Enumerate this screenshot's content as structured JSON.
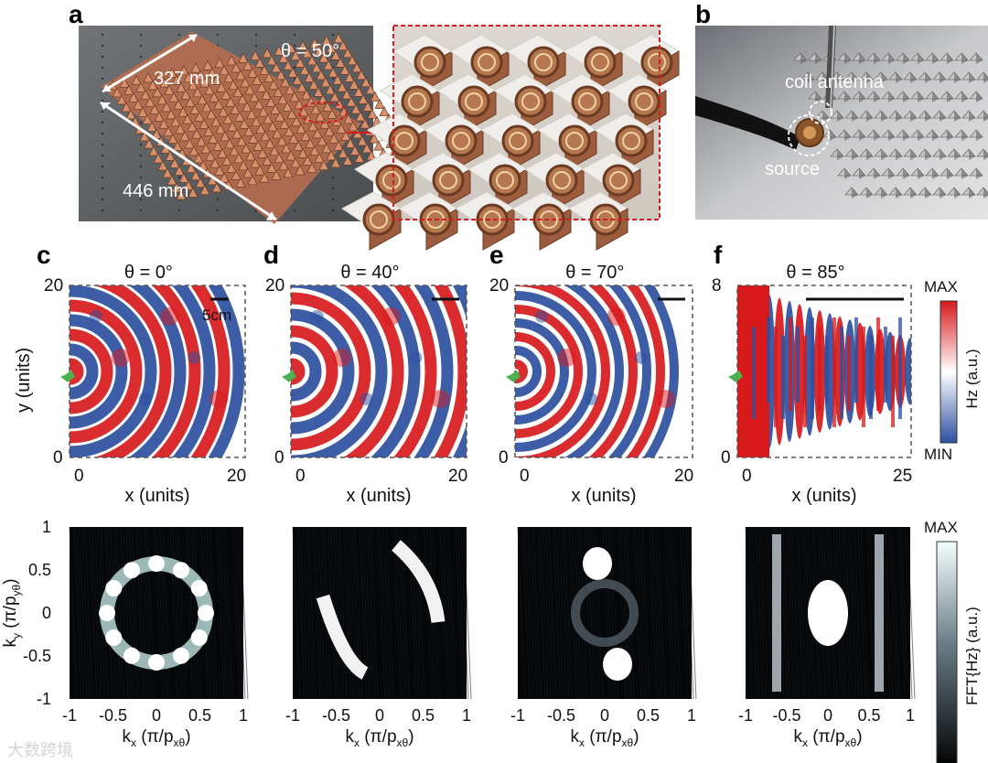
{
  "panels": {
    "a": {
      "letter": "a",
      "theta_label": "θ = 50°",
      "dim_327": "327 mm",
      "dim_446": "446 mm"
    },
    "b": {
      "letter": "b",
      "coil_label": "coil antenna",
      "source_label": "source"
    },
    "c": {
      "letter": "c",
      "theta_label": "θ = 0°",
      "scale_label": "5cm",
      "x_label": "x (units)",
      "y_label": "y (units)",
      "x_ticks": [
        "0",
        "20"
      ],
      "y_ticks": [
        "20",
        "0"
      ]
    },
    "d": {
      "letter": "d",
      "theta_label": "θ = 40°",
      "x_label": "x (units)",
      "x_ticks": [
        "0",
        "20"
      ],
      "y_ticks": [
        "20",
        "0"
      ]
    },
    "e": {
      "letter": "e",
      "theta_label": "θ = 70°",
      "x_label": "x (units)",
      "x_ticks": [
        "0",
        "20"
      ],
      "y_ticks": [
        "20",
        "0"
      ]
    },
    "f": {
      "letter": "f",
      "theta_label": "θ = 85°",
      "x_label": "x (units)",
      "x_ticks": [
        "0",
        "25"
      ],
      "y_ticks": [
        "8",
        "0"
      ]
    },
    "fft": {
      "y_label_main": "k",
      "y_label_sub": "y",
      "y_label_unit": " (π/p",
      "y_label_unit_sub": "yθ",
      "y_label_close": ")",
      "x_label_main": "k",
      "x_label_sub": "x",
      "x_label_unit": " (π/p",
      "x_label_unit_sub": "xθ",
      "x_label_close": ")",
      "y_ticks": [
        "1",
        "0.5",
        "0",
        "-0.5",
        "-1"
      ],
      "x_ticks": [
        "-1",
        "-0.5",
        "0",
        "0.5",
        "1"
      ]
    },
    "colorbar_hz": {
      "max_label": "MAX",
      "min_label": "MIN",
      "title": "Hz (a.u.)"
    },
    "colorbar_fft": {
      "max_label": "MAX",
      "zero_label": "0",
      "title": "FFT{Hz} (a.u.)"
    },
    "watermark": "大数跨境"
  },
  "colors": {
    "red": "#d7191c",
    "blue": "#2c4fa0",
    "green_star": "#4caf50",
    "fft_glow": "#eaf8f7",
    "dark": "#111111"
  }
}
